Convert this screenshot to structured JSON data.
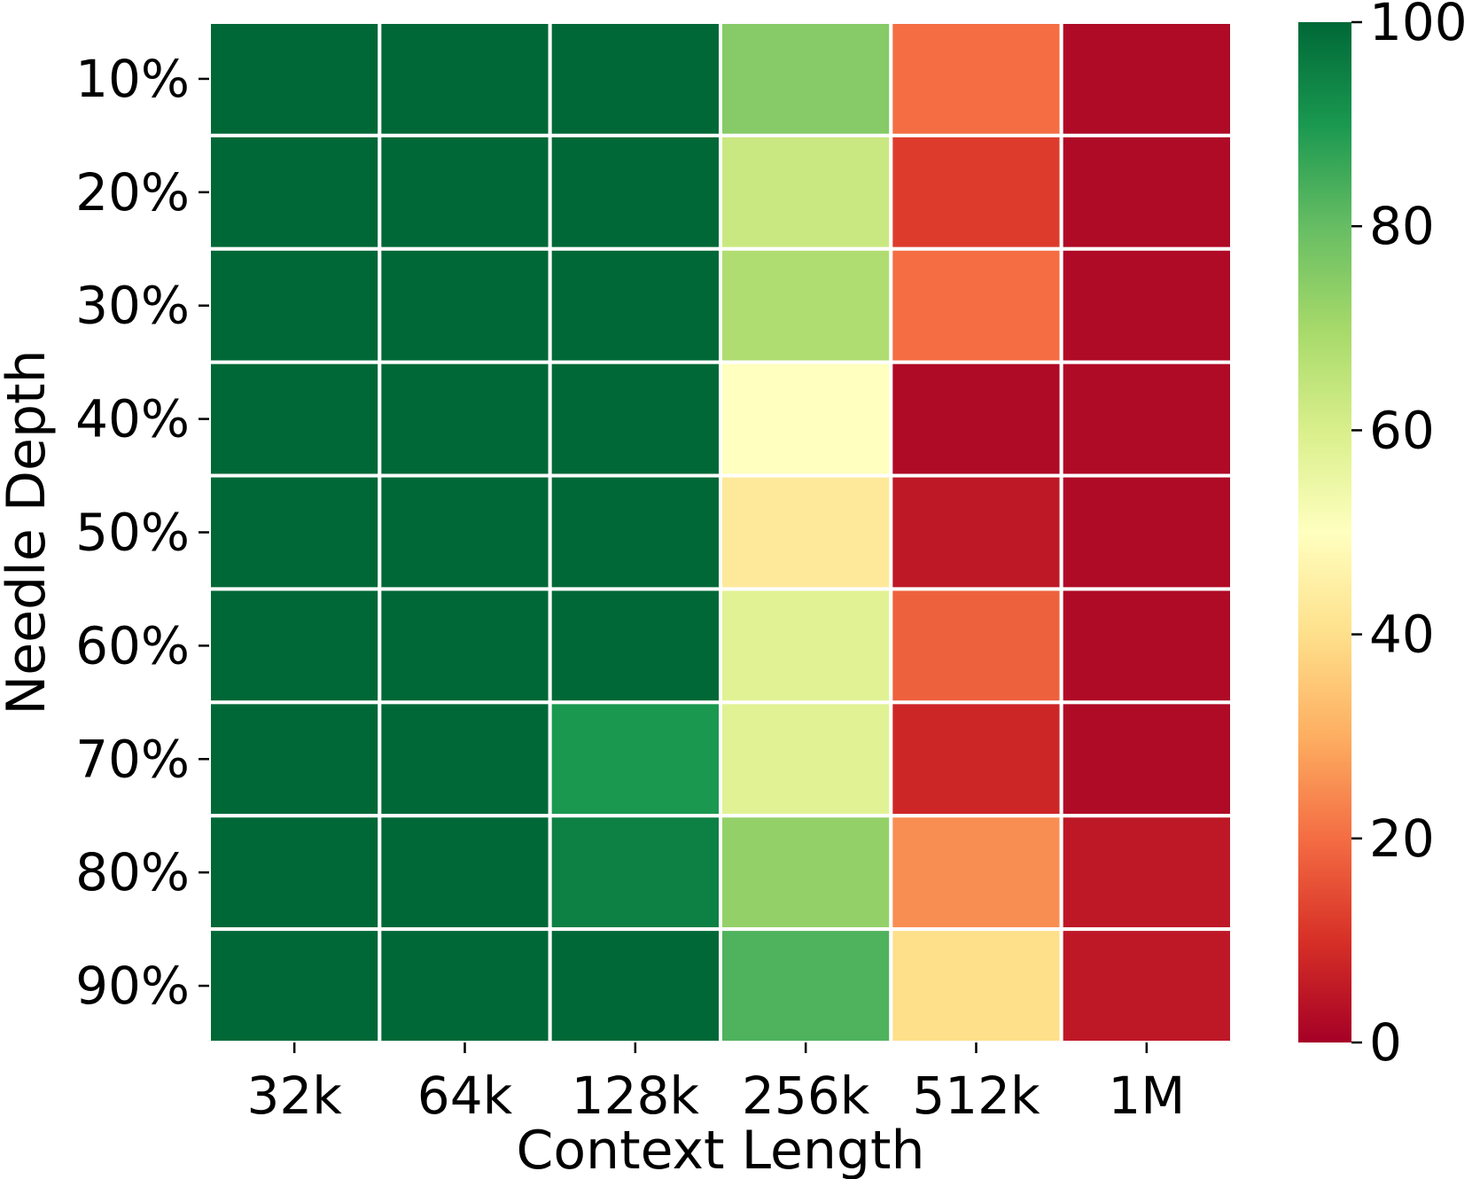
{
  "chart_data": {
    "type": "heatmap",
    "title": "",
    "xlabel": "Context Length",
    "ylabel": "Needle Depth",
    "x_categories": [
      "32k",
      "64k",
      "128k",
      "256k",
      "512k",
      "1M"
    ],
    "y_categories": [
      "10%",
      "20%",
      "30%",
      "40%",
      "50%",
      "60%",
      "70%",
      "80%",
      "90%"
    ],
    "values": [
      [
        100,
        100,
        100,
        75,
        20,
        2
      ],
      [
        100,
        100,
        100,
        63,
        12,
        2
      ],
      [
        100,
        100,
        100,
        68,
        20,
        2
      ],
      [
        100,
        100,
        100,
        50,
        2,
        2
      ],
      [
        100,
        100,
        100,
        43,
        5,
        2
      ],
      [
        100,
        100,
        100,
        58,
        18,
        2
      ],
      [
        100,
        100,
        90,
        58,
        8,
        2
      ],
      [
        100,
        100,
        95,
        73,
        25,
        5
      ],
      [
        100,
        100,
        100,
        83,
        40,
        5
      ]
    ],
    "colorbar": {
      "min": 0,
      "max": 100,
      "ticks": [
        "0",
        "20",
        "40",
        "60",
        "80",
        "100"
      ],
      "colormap": "RdYlGn"
    },
    "grid": false
  }
}
